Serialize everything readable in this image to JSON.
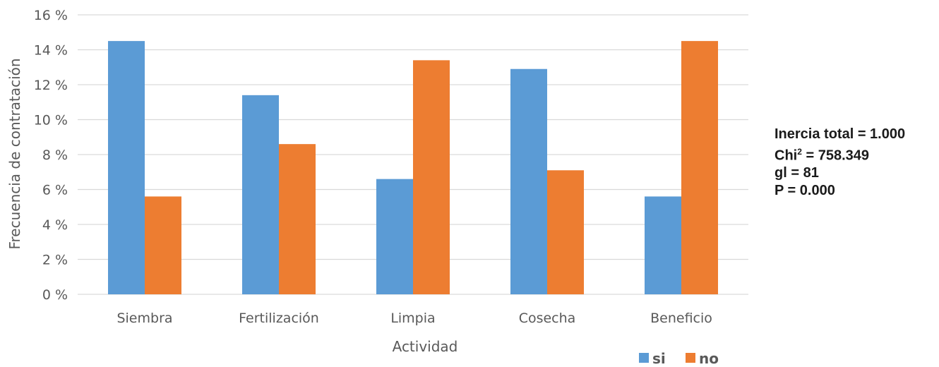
{
  "chart_data": {
    "type": "bar",
    "categories": [
      "Siembra",
      "Fertilización",
      "Limpia",
      "Cosecha",
      "Beneficio"
    ],
    "series": [
      {
        "name": "si",
        "values": [
          14.5,
          11.4,
          6.6,
          12.9,
          5.6
        ],
        "color": "#5b9bd5"
      },
      {
        "name": "no",
        "values": [
          5.6,
          8.6,
          13.4,
          7.1,
          14.5
        ],
        "color": "#ed7d31"
      }
    ],
    "title": "",
    "xlabel": "Actividad",
    "ylabel": "Frecuencia de contratación",
    "ylim": [
      0,
      16
    ],
    "yticks": [
      "0 %",
      "2 %",
      "4 %",
      "6 %",
      "8 %",
      "10 %",
      "12 %",
      "14 %",
      "16 %"
    ],
    "grid": true,
    "legend_position": "bottom-right",
    "gridline_color": "#d9d9d9",
    "text_color": "#595959"
  },
  "stats": {
    "inercia": "Inercia total = 1.000",
    "chi_prefix": "Chi",
    "chi_sup": "2",
    "chi_rest": " = 758.349",
    "gl": "gl = 81",
    "p": "P = 0.000"
  }
}
